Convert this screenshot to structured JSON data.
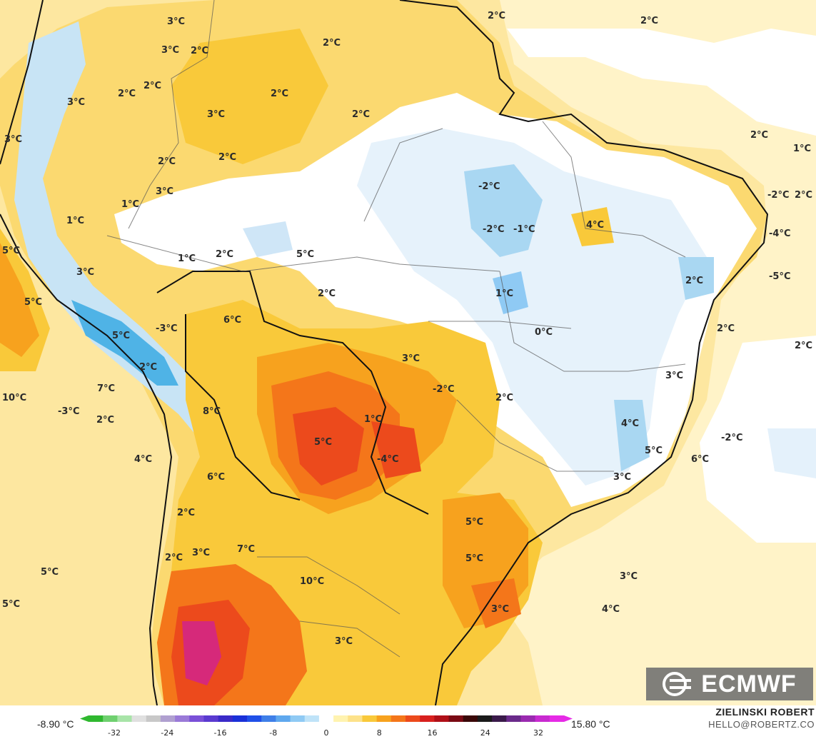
{
  "map": {
    "colors": {
      "ocean_light": "#fff2c4",
      "warm1": "#fde28a",
      "warm2": "#f9c93a",
      "warm3": "#f7a21e",
      "hot1": "#f4761a",
      "hot2": "#ec4a1c",
      "hot3": "#d8201e",
      "magenta": "#d6297a",
      "cold1": "#e4f1fb",
      "cold2": "#a9d7f2",
      "cold3": "#4fb3e6",
      "border": "#111111"
    },
    "labels": [
      {
        "id": "l01",
        "text": "3°C"
      },
      {
        "id": "l02",
        "text": "2°C"
      },
      {
        "id": "l03",
        "text": "2°C"
      },
      {
        "id": "l04",
        "text": "2°C"
      },
      {
        "id": "l05",
        "text": "3°C"
      },
      {
        "id": "l06",
        "text": "2°C"
      },
      {
        "id": "l07",
        "text": "2°C"
      },
      {
        "id": "l08",
        "text": "2°C"
      },
      {
        "id": "l09",
        "text": "2°C"
      },
      {
        "id": "l10",
        "text": "3°C"
      },
      {
        "id": "l11",
        "text": "3°C"
      },
      {
        "id": "l12",
        "text": "2°C"
      },
      {
        "id": "l13",
        "text": "3°C"
      },
      {
        "id": "l14",
        "text": "2°C"
      },
      {
        "id": "l15",
        "text": "1°C"
      },
      {
        "id": "l16",
        "text": "2°C"
      },
      {
        "id": "l17",
        "text": "2°C"
      },
      {
        "id": "l18",
        "text": "3°C"
      },
      {
        "id": "l19",
        "text": "1°C"
      },
      {
        "id": "l20",
        "text": "1°C"
      },
      {
        "id": "l21",
        "text": "5°C"
      },
      {
        "id": "l22",
        "text": "1°C"
      },
      {
        "id": "l23",
        "text": "2°C"
      },
      {
        "id": "l24",
        "text": "5°C"
      },
      {
        "id": "l25",
        "text": "-2°C"
      },
      {
        "id": "l26",
        "text": "-2°C"
      },
      {
        "id": "l27",
        "text": "-1°C"
      },
      {
        "id": "l28",
        "text": "4°C"
      },
      {
        "id": "l29",
        "text": "-2°C"
      },
      {
        "id": "l30",
        "text": "2°C"
      },
      {
        "id": "l31",
        "text": "-4°C"
      },
      {
        "id": "l32",
        "text": "3°C"
      },
      {
        "id": "l33",
        "text": "2°C"
      },
      {
        "id": "l34",
        "text": "-5°C"
      },
      {
        "id": "l35",
        "text": "5°C"
      },
      {
        "id": "l36",
        "text": "2°C"
      },
      {
        "id": "l37",
        "text": "1°C"
      },
      {
        "id": "l38",
        "text": "6°C"
      },
      {
        "id": "l39",
        "text": "-3°C"
      },
      {
        "id": "l40",
        "text": "2°C"
      },
      {
        "id": "l41",
        "text": "5°C"
      },
      {
        "id": "l42",
        "text": "0°C"
      },
      {
        "id": "l43",
        "text": "2°C"
      },
      {
        "id": "l44",
        "text": "3°C"
      },
      {
        "id": "l45",
        "text": "2°C"
      },
      {
        "id": "l46",
        "text": "3°C"
      },
      {
        "id": "l47",
        "text": "7°C"
      },
      {
        "id": "l48",
        "text": "-2°C"
      },
      {
        "id": "l49",
        "text": "2°C"
      },
      {
        "id": "l50",
        "text": "10°C"
      },
      {
        "id": "l51",
        "text": "-3°C"
      },
      {
        "id": "l52",
        "text": "8°C"
      },
      {
        "id": "l53",
        "text": "1°C"
      },
      {
        "id": "l54",
        "text": "2°C"
      },
      {
        "id": "l55",
        "text": "4°C"
      },
      {
        "id": "l56",
        "text": "-2°C"
      },
      {
        "id": "l57",
        "text": "5°C"
      },
      {
        "id": "l58",
        "text": "5°C"
      },
      {
        "id": "l59",
        "text": "-4°C"
      },
      {
        "id": "l60",
        "text": "4°C"
      },
      {
        "id": "l61",
        "text": "6°C"
      },
      {
        "id": "l62",
        "text": "6°C"
      },
      {
        "id": "l63",
        "text": "3°C"
      },
      {
        "id": "l64",
        "text": "5°C"
      },
      {
        "id": "l65",
        "text": "2°C"
      },
      {
        "id": "l66",
        "text": "3°C"
      },
      {
        "id": "l67",
        "text": "7°C"
      },
      {
        "id": "l68",
        "text": "2°C"
      },
      {
        "id": "l69",
        "text": "5°C"
      },
      {
        "id": "l70",
        "text": "5°C"
      },
      {
        "id": "l71",
        "text": "3°C"
      },
      {
        "id": "l72",
        "text": "10°C"
      },
      {
        "id": "l73",
        "text": "5°C"
      },
      {
        "id": "l74",
        "text": "3°C"
      },
      {
        "id": "l75",
        "text": "4°C"
      },
      {
        "id": "l76",
        "text": "3°C"
      }
    ]
  },
  "logo": {
    "text": "ECMWF",
    "icon": "ecmwf-logo-icon"
  },
  "legend": {
    "min_label": "-8.90 °C",
    "max_label": "15.80 °C",
    "ticks": [
      "-32",
      "-24",
      "-16",
      "-8",
      "0",
      "8",
      "16",
      "24",
      "32"
    ],
    "colors": [
      "#2fb82f",
      "#6fd06f",
      "#a8e4a8",
      "#e0e0e0",
      "#c8c8c8",
      "#b0a0d0",
      "#9a7ad8",
      "#7a50d8",
      "#5a3ad0",
      "#3a2ac8",
      "#1a30d8",
      "#2050e8",
      "#3f7fe8",
      "#5fa8ee",
      "#8fcaf4",
      "#bfe3f8",
      "#ffffff",
      "#fff3b0",
      "#fde28a",
      "#f9c93a",
      "#f7a21e",
      "#f4761a",
      "#ec4a1c",
      "#d8201e",
      "#b01018",
      "#7a0a14",
      "#3a0808",
      "#1a1a1a",
      "#3a1a4a",
      "#6a2a8a",
      "#9a2ab0",
      "#c82ad0",
      "#e62ae6"
    ]
  },
  "credits": {
    "author": "ZIELINSKI ROBERT",
    "email": "HELLO@ROBERTZ.CO"
  }
}
